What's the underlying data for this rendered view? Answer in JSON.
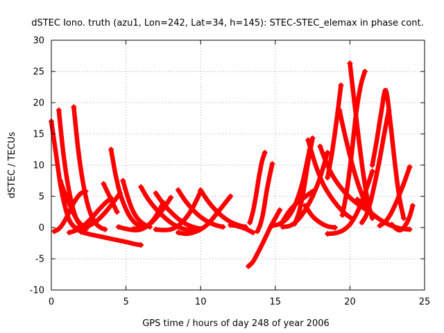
{
  "chart_data": {
    "type": "scatter",
    "title": "dSTEC Iono. truth (azu1, Lon=242, Lat=34, h=145): STEC-STEC_elemax in phase cont.",
    "xlabel": "GPS time / hours of day 248 of year 2006",
    "ylabel": "dSTEC  / TECUs",
    "xlim": [
      0,
      25
    ],
    "ylim": [
      -10,
      30
    ],
    "xticks": [
      0,
      5,
      10,
      15,
      20,
      25
    ],
    "yticks": [
      -10,
      -5,
      0,
      5,
      10,
      15,
      20,
      25,
      30
    ],
    "grid": true,
    "legend": "none",
    "marker": "+",
    "color": "#ff0000",
    "series": [
      {
        "x": [
          0,
          0.3,
          0.6,
          0.9,
          1.2,
          1.5,
          1.8,
          2.1
        ],
        "y": [
          17,
          12,
          7,
          3.5,
          1.2,
          0.2,
          -0.4,
          -0.7
        ]
      },
      {
        "x": [
          0.5,
          0.8,
          1.1,
          1.4,
          1.7,
          2.0,
          2.3
        ],
        "y": [
          18.8,
          12,
          7,
          3.5,
          1.3,
          0.3,
          -0.3
        ]
      },
      {
        "x": [
          1.5,
          1.8,
          2.1,
          2.4,
          2.7,
          3.0,
          3.3,
          3.6
        ],
        "y": [
          19.3,
          12.5,
          7.5,
          4,
          1.8,
          0.6,
          0,
          -0.3
        ]
      },
      {
        "x": [
          4.0,
          4.3,
          4.6,
          4.9,
          5.2,
          5.5,
          5.8,
          6.1
        ],
        "y": [
          12.5,
          8.5,
          5.5,
          3.5,
          2,
          1,
          0.4,
          0.1
        ]
      },
      {
        "x": [
          4.8,
          5.1,
          5.4,
          5.7,
          6.0,
          6.3,
          6.6
        ],
        "y": [
          7.5,
          5,
          3,
          1.7,
          0.9,
          0.4,
          0.1
        ]
      },
      {
        "x": [
          6.0,
          6.5,
          7.0,
          7.5,
          8.0,
          8.5,
          9.0,
          9.5
        ],
        "y": [
          6.5,
          4.5,
          3,
          1.8,
          0.8,
          0.1,
          -0.3,
          -0.5
        ]
      },
      {
        "x": [
          7.0,
          7.5,
          8.0,
          8.5,
          9.0,
          9.5,
          10.0
        ],
        "y": [
          5.5,
          3.8,
          2.5,
          1.4,
          0.6,
          0.1,
          -0.2
        ]
      },
      {
        "x": [
          8.5,
          9.0,
          9.5,
          10.0,
          10.5,
          11.0,
          11.5
        ],
        "y": [
          6,
          4.2,
          2.8,
          1.7,
          0.9,
          0.4,
          0.1
        ]
      },
      {
        "x": [
          10.0,
          10.5,
          11.0,
          11.5,
          12.0,
          12.5,
          13.0
        ],
        "y": [
          6,
          4.2,
          2.8,
          1.7,
          0.9,
          0.4,
          0.1
        ]
      },
      {
        "x": [
          3.5,
          3.8,
          4.1,
          4.4
        ],
        "y": [
          7,
          5.5,
          4,
          2.5
        ]
      },
      {
        "x": [
          0.2,
          0.5,
          0.8,
          1.1,
          1.4,
          1.7,
          2.0,
          2.3
        ],
        "y": [
          -0.6,
          -0.2,
          0.7,
          2,
          3.5,
          4.7,
          5.5,
          5.8
        ]
      },
      {
        "x": [
          0.6,
          0.9,
          1.2,
          1.5,
          1.8,
          2.1,
          2.4
        ],
        "y": [
          7.5,
          5.5,
          3.8,
          2.2,
          1,
          0.3,
          0
        ]
      },
      {
        "x": [
          1.2,
          1.6,
          2.0,
          2.4,
          2.8,
          3.2,
          3.6,
          4.0
        ],
        "y": [
          -0.8,
          -0.5,
          0,
          0.8,
          1.8,
          2.9,
          3.9,
          4.7
        ]
      },
      {
        "x": [
          2.0,
          2.6,
          3.2,
          3.8,
          4.4,
          5.0,
          5.5,
          6.0
        ],
        "y": [
          -0.7,
          -1.1,
          -1.4,
          -1.7,
          -2,
          -2.3,
          -2.6,
          -2.8
        ]
      },
      {
        "x": [
          1.8,
          2.4,
          3.0,
          3.6,
          4.2,
          4.6
        ],
        "y": [
          0,
          0.2,
          1,
          2.4,
          4.2,
          5.5
        ]
      },
      {
        "x": [
          4.5,
          5.0,
          5.5,
          6.0,
          6.5,
          7.0,
          7.5
        ],
        "y": [
          0.1,
          -0.2,
          -0.4,
          -0.3,
          0.4,
          1.8,
          4
        ]
      },
      {
        "x": [
          5.5,
          6.0,
          6.5,
          7.0,
          7.5,
          8.0
        ],
        "y": [
          -0.2,
          -0.1,
          0.4,
          1.5,
          3,
          4.8
        ]
      },
      {
        "x": [
          7.0,
          7.5,
          8.0,
          8.5,
          9.0,
          9.5,
          10.0
        ],
        "y": [
          -0.3,
          -0.4,
          -0.3,
          0.3,
          1.5,
          3.3,
          5.8
        ]
      },
      {
        "x": [
          8.5,
          9.0,
          9.5,
          10.0,
          10.5,
          11.0,
          11.5,
          12.0
        ],
        "y": [
          -0.8,
          -1,
          -0.8,
          -0.3,
          0.6,
          2,
          3.5,
          5
        ]
      },
      {
        "x": [
          12.0,
          12.5,
          13.0,
          13.5
        ],
        "y": [
          0.4,
          0.2,
          -0.2,
          -0.8
        ]
      },
      {
        "x": [
          13.3,
          13.5,
          13.7,
          13.9,
          14.1,
          14.3
        ],
        "y": [
          0.8,
          2.5,
          5,
          8,
          10.5,
          12
        ]
      },
      {
        "x": [
          13.2,
          13.5,
          13.8,
          14.1,
          14.4,
          14.7,
          15.0,
          15.3
        ],
        "y": [
          -6.2,
          -5.5,
          -4.2,
          -2.8,
          -1.3,
          0.2,
          1.5,
          2.8
        ]
      },
      {
        "x": [
          13.8,
          14.0,
          14.2,
          14.4,
          14.6,
          14.8
        ],
        "y": [
          -0.6,
          0.5,
          2.5,
          5.5,
          8,
          10.2
        ]
      },
      {
        "x": [
          14.8,
          15.3,
          15.8,
          16.3,
          16.8,
          17.3
        ],
        "y": [
          0.3,
          0.6,
          1.5,
          3.5,
          7,
          12.5
        ]
      },
      {
        "x": [
          16.3,
          16.6,
          16.9,
          17.2,
          17.5
        ],
        "y": [
          0.6,
          2.5,
          6,
          10.5,
          14.3
        ]
      },
      {
        "x": [
          15.5,
          15.9,
          16.3,
          16.7,
          17.1,
          17.5
        ],
        "y": [
          1,
          2.5,
          3.6,
          4.4,
          5.1,
          5.8
        ]
      },
      {
        "x": [
          15.5,
          16.0,
          16.5,
          17.0,
          17.5,
          18.0,
          18.5
        ],
        "y": [
          0.1,
          0.3,
          1.2,
          2.8,
          5,
          8,
          12
        ]
      },
      {
        "x": [
          17.0,
          17.5,
          18.0,
          18.5,
          19.0
        ],
        "y": [
          3.5,
          1.8,
          0.8,
          0.2,
          0
        ]
      },
      {
        "x": [
          18.0,
          18.4,
          18.8,
          19.2,
          19.6,
          20.0,
          20.4,
          20.8,
          21.2
        ],
        "y": [
          13,
          10.5,
          8.5,
          7,
          5.8,
          4.8,
          4,
          3.3,
          2.7
        ]
      },
      {
        "x": [
          18.5,
          18.8,
          19.1,
          19.4
        ],
        "y": [
          8,
          12,
          17,
          22.8
        ]
      },
      {
        "x": [
          18.5,
          19.0,
          19.5,
          20.0,
          20.5,
          21.0,
          21.5
        ],
        "y": [
          -1,
          -0.9,
          -0.5,
          0.5,
          2.5,
          5.5,
          9
        ]
      },
      {
        "x": [
          19.3,
          19.6,
          19.9,
          20.2,
          20.5,
          20.8,
          21.1,
          21.4
        ],
        "y": [
          18.8,
          15.5,
          12.5,
          9.7,
          7.3,
          5.3,
          3.6,
          2.2
        ]
      },
      {
        "x": [
          19.5,
          19.8,
          20.1,
          20.4,
          20.7,
          21.0
        ],
        "y": [
          2,
          6,
          11.5,
          18,
          22.5,
          25
        ]
      },
      {
        "x": [
          20.0,
          20.3,
          20.6,
          20.9,
          21.2,
          21.5
        ],
        "y": [
          26.3,
          20,
          14,
          8.5,
          4.2,
          1.5
        ]
      },
      {
        "x": [
          20.8,
          21.1,
          21.4,
          21.7,
          22.0,
          22.3,
          22.6
        ],
        "y": [
          0.8,
          2,
          4.3,
          7.5,
          11,
          15,
          18.8
        ]
      },
      {
        "x": [
          21.5,
          21.8,
          22.1,
          22.4,
          22.7,
          23.0,
          23.3,
          23.6
        ],
        "y": [
          10,
          14,
          18.5,
          22,
          17,
          10.5,
          5,
          1.5
        ]
      },
      {
        "x": [
          22.0,
          22.4,
          22.8,
          23.2,
          23.6,
          24.0
        ],
        "y": [
          0.3,
          1,
          2.5,
          4.6,
          7,
          9.7
        ]
      },
      {
        "x": [
          22.8,
          23.1,
          23.4,
          23.7,
          24.0,
          24.2
        ],
        "y": [
          0.5,
          -0.2,
          -0.4,
          0.3,
          1.8,
          3.5
        ]
      },
      {
        "x": [
          20.5,
          21.0,
          21.5,
          22.0,
          22.5,
          23.0,
          23.5,
          24.0
        ],
        "y": [
          4.5,
          3.3,
          2.2,
          1.3,
          0.6,
          0.1,
          -0.2,
          -0.3
        ]
      },
      {
        "x": [
          17.2,
          17.7,
          18.2,
          18.7,
          19.2,
          19.7,
          20.2
        ],
        "y": [
          14,
          10,
          7,
          5,
          3.4,
          2.2,
          1.3
        ]
      }
    ]
  }
}
